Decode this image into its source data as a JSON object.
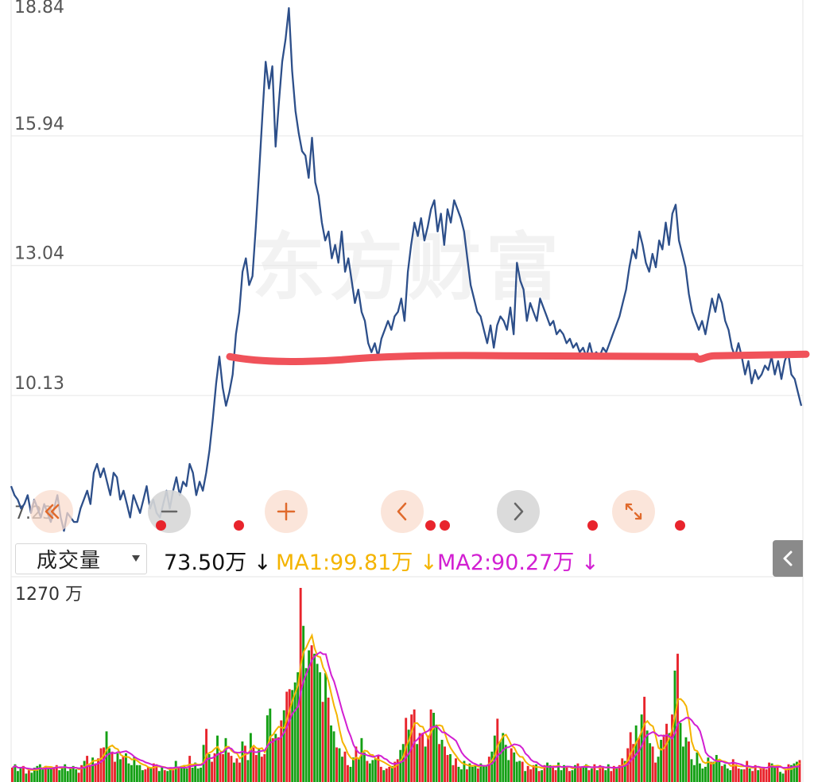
{
  "chart_data": [
    {
      "type": "line",
      "y_ticks": [
        "18.84",
        "15.94",
        "13.04",
        "10.13",
        "7.23"
      ],
      "ylim": [
        7.23,
        18.84
      ],
      "grid": true,
      "watermark": "东方财富",
      "line_color": "#2d4f8a",
      "annotation_color": "#f0525a",
      "annotation_level": 11.0,
      "series": [
        {
          "values": [
            8.1,
            7.9,
            7.8,
            7.6,
            7.7,
            7.9,
            7.5,
            7.8,
            7.6,
            7.4,
            7.7,
            7.5,
            7.3,
            7.6,
            7.9,
            7.4,
            7.1,
            7.5,
            7.4,
            7.3,
            7.3,
            7.6,
            7.8,
            8.0,
            7.7,
            8.4,
            8.6,
            8.3,
            8.5,
            8.2,
            7.9,
            8.4,
            8.3,
            7.8,
            8.0,
            7.7,
            7.4,
            7.9,
            7.7,
            7.5,
            7.8,
            8.1,
            7.6,
            7.8,
            7.5,
            7.4,
            7.7,
            8.0,
            7.6,
            8.0,
            8.3,
            7.9,
            8.2,
            8.1,
            8.6,
            8.4,
            7.9,
            8.2,
            8.0,
            8.4,
            8.9,
            9.6,
            10.4,
            11.0,
            10.3,
            9.9,
            10.2,
            10.6,
            11.5,
            12.0,
            12.9,
            13.2,
            12.6,
            12.8,
            13.9,
            15.1,
            16.4,
            17.6,
            17.0,
            17.5,
            15.7,
            16.7,
            17.6,
            18.1,
            18.8,
            17.4,
            16.5,
            16.0,
            15.6,
            15.5,
            15.0,
            15.9,
            14.9,
            14.6,
            14.0,
            13.6,
            13.8,
            13.2,
            13.5,
            13.1,
            13.8,
            12.9,
            13.2,
            12.7,
            12.2,
            12.5,
            12.0,
            11.8,
            11.3,
            11.1,
            11.3,
            11.0,
            11.4,
            11.6,
            11.8,
            11.6,
            11.9,
            12.0,
            12.3,
            11.8,
            12.9,
            13.5,
            14.0,
            13.7,
            14.1,
            13.6,
            13.9,
            14.3,
            14.5,
            13.8,
            14.2,
            13.5,
            14.3,
            14.0,
            14.5,
            14.3,
            14.1,
            13.8,
            13.2,
            12.6,
            12.3,
            12.0,
            11.9,
            11.6,
            11.3,
            11.7,
            11.2,
            11.7,
            11.9,
            11.8,
            11.6,
            12.1,
            11.5,
            13.1,
            12.7,
            12.5,
            11.8,
            12.2,
            12.0,
            11.8,
            12.3,
            12.1,
            11.9,
            11.7,
            11.8,
            11.5,
            11.6,
            11.5,
            11.3,
            11.4,
            11.2,
            11.3,
            11.1,
            11.2,
            11.0,
            11.3,
            11.0,
            11.1,
            11.0,
            11.2,
            11.1,
            11.3,
            11.5,
            11.7,
            11.9,
            12.2,
            12.5,
            13.0,
            13.4,
            13.2,
            13.8,
            13.5,
            13.1,
            12.9,
            13.3,
            13.0,
            13.6,
            13.4,
            14.0,
            13.5,
            14.2,
            14.4,
            13.6,
            13.3,
            13.0,
            12.4,
            12.0,
            11.8,
            11.6,
            11.8,
            11.5,
            11.9,
            12.3,
            12.0,
            12.4,
            12.2,
            11.8,
            11.6,
            11.2,
            11.0,
            11.3,
            11.0,
            10.6,
            10.9,
            10.4,
            10.7,
            10.5,
            10.6,
            10.8,
            10.7,
            11.0,
            10.6,
            10.9,
            10.5,
            10.9,
            11.1,
            10.6,
            10.5,
            10.2,
            9.9
          ]
        }
      ]
    },
    {
      "type": "bar",
      "ylim_label": "1270 万",
      "up_color": "#e8242c",
      "down_color": "#14a014",
      "ma1_color": "#f4b400",
      "ma2_color": "#d21fd2",
      "heights": [
        17,
        21,
        13,
        17,
        19,
        10,
        14,
        11,
        17,
        19,
        21,
        15,
        19,
        16,
        18,
        16,
        20,
        14,
        17,
        21,
        13,
        16,
        19,
        15,
        11,
        20,
        25,
        31,
        20,
        29,
        22,
        28,
        40,
        41,
        60,
        40,
        36,
        24,
        34,
        27,
        30,
        34,
        22,
        20,
        30,
        20,
        20,
        14,
        15,
        18,
        17,
        22,
        21,
        13,
        18,
        14,
        13,
        16,
        14,
        25,
        18,
        19,
        20,
        16,
        31,
        17,
        23,
        16,
        17,
        44,
        63,
        33,
        24,
        34,
        55,
        34,
        33,
        52,
        35,
        31,
        23,
        28,
        23,
        48,
        43,
        26,
        58,
        41,
        32,
        40,
        30,
        33,
        79,
        87,
        52,
        57,
        53,
        73,
        85,
        107,
        110,
        109,
        118,
        130,
        230,
        185,
        135,
        156,
        162,
        152,
        140,
        130,
        95,
        129,
        100,
        67,
        60,
        41,
        40,
        30,
        36,
        20,
        18,
        29,
        42,
        28,
        52,
        35,
        25,
        22,
        26,
        28,
        31,
        18,
        14,
        16,
        18,
        19,
        24,
        27,
        38,
        45,
        76,
        62,
        80,
        86,
        45,
        58,
        58,
        42,
        55,
        86,
        82,
        68,
        45,
        50,
        42,
        32,
        33,
        20,
        28,
        18,
        15,
        25,
        15,
        22,
        18,
        19,
        16,
        22,
        20,
        20,
        30,
        36,
        55,
        75,
        48,
        58,
        44,
        26,
        40,
        35,
        24,
        25,
        24,
        13,
        19,
        15,
        20,
        21,
        13,
        14,
        20,
        23,
        20,
        17,
        14,
        23,
        14,
        20,
        19,
        13,
        14,
        20,
        22,
        18,
        17,
        21,
        14,
        16,
        21,
        14,
        20,
        17,
        14,
        21,
        13,
        19,
        16,
        20,
        28,
        25,
        40,
        59,
        45,
        67,
        52,
        80,
        101,
        61,
        46,
        42,
        23,
        30,
        50,
        56,
        69,
        58,
        80,
        132,
        152,
        70,
        42,
        53,
        48,
        27,
        20,
        35,
        22,
        16,
        18,
        29,
        24,
        24,
        32,
        25,
        19,
        21,
        16,
        14,
        27,
        21,
        16,
        15,
        15,
        25,
        16,
        13,
        20,
        14,
        18,
        18,
        15,
        23,
        22,
        17,
        20,
        12,
        10,
        14,
        21,
        20,
        22,
        24,
        26
      ],
      "ma1_text": "MA1:99.81万",
      "ma2_text": "MA2:90.27万",
      "current_text": "73.50万"
    }
  ],
  "volume_header": {
    "selector_label": "成交量",
    "current_value": "73.50万",
    "current_arrow": "↓",
    "ma1": "MA1:99.81万",
    "ma1_arrow": "↓",
    "ma2": "MA2:90.27万",
    "ma2_arrow": "↓",
    "max_label": "1270 万"
  },
  "controls": {
    "rewind_icon": "double-chevron-left-icon",
    "zoom_out_icon": "minus-icon",
    "zoom_in_icon": "plus-icon",
    "prev_icon": "chevron-left-icon",
    "next_icon": "chevron-right-icon",
    "fullscreen_icon": "expand-icon",
    "collapse_icon": "chevron-left-icon"
  }
}
